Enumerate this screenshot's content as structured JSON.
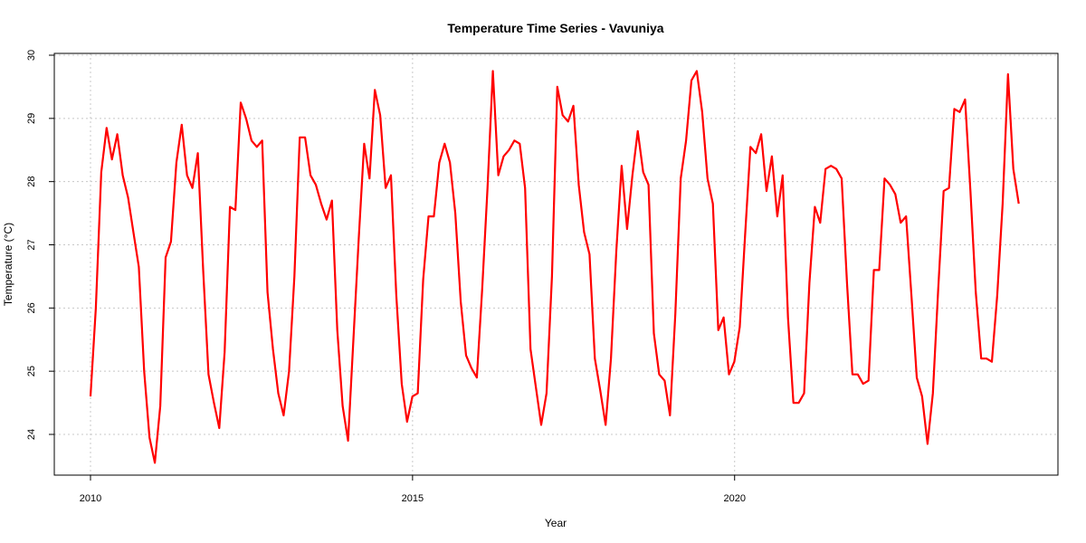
{
  "chart_data": {
    "type": "line",
    "title": "Temperature Time Series - Vavuniya",
    "xlabel": "Year",
    "ylabel": "Temperature (°C)",
    "xlim": [
      2010,
      2024.5
    ],
    "ylim": [
      23.3,
      30
    ],
    "x_ticks": [
      2010,
      2015,
      2020
    ],
    "y_ticks": [
      24,
      25,
      26,
      27,
      28,
      29,
      30
    ],
    "grid": true,
    "series": [
      {
        "color": "#ff0000",
        "x_start": 2010.0,
        "x_step": 0.0833,
        "values": [
          24.6,
          26.0,
          28.15,
          28.85,
          28.35,
          28.75,
          28.1,
          27.75,
          27.2,
          26.65,
          25.0,
          23.95,
          23.55,
          24.45,
          26.8,
          27.05,
          28.3,
          28.9,
          28.1,
          27.9,
          28.45,
          26.6,
          24.95,
          24.5,
          24.1,
          25.3,
          27.6,
          27.55,
          29.25,
          29.0,
          28.65,
          28.55,
          28.65,
          26.25,
          25.35,
          24.65,
          24.3,
          25.0,
          26.5,
          28.7,
          28.7,
          28.1,
          27.95,
          27.65,
          27.4,
          27.7,
          25.65,
          24.45,
          23.9,
          25.5,
          27.1,
          28.6,
          28.05,
          29.45,
          29.05,
          27.9,
          28.1,
          26.2,
          24.8,
          24.2,
          24.6,
          24.65,
          26.45,
          27.45,
          27.45,
          28.3,
          28.6,
          28.3,
          27.5,
          26.1,
          25.25,
          25.05,
          24.9,
          26.3,
          27.9,
          29.75,
          28.1,
          28.4,
          28.5,
          28.65,
          28.6,
          27.9,
          25.35,
          24.75,
          24.15,
          24.65,
          26.5,
          29.5,
          29.05,
          28.95,
          29.2,
          27.95,
          27.2,
          26.85,
          25.2,
          24.7,
          24.15,
          25.2,
          26.9,
          28.25,
          27.25,
          28.1,
          28.8,
          28.15,
          27.95,
          25.6,
          24.95,
          24.85,
          24.3,
          25.9,
          28.05,
          28.65,
          29.6,
          29.75,
          29.1,
          28.05,
          27.65,
          25.65,
          25.85,
          24.95,
          25.15,
          25.7,
          27.15,
          28.55,
          28.45,
          28.75,
          27.85,
          28.4,
          27.45,
          28.1,
          25.85,
          24.5,
          24.5,
          24.65,
          26.4,
          27.6,
          27.35,
          28.2,
          28.25,
          28.2,
          28.05,
          26.4,
          24.95,
          24.95,
          24.8,
          24.85,
          26.6,
          26.6,
          28.05,
          27.95,
          27.8,
          27.35,
          27.45,
          26.2,
          24.9,
          24.6,
          23.85,
          24.65,
          26.3,
          27.85,
          27.9,
          29.15,
          29.1,
          29.3,
          27.85,
          26.25,
          25.2,
          25.2,
          25.15,
          26.2,
          27.65,
          29.7,
          28.2,
          27.65
        ]
      }
    ]
  }
}
